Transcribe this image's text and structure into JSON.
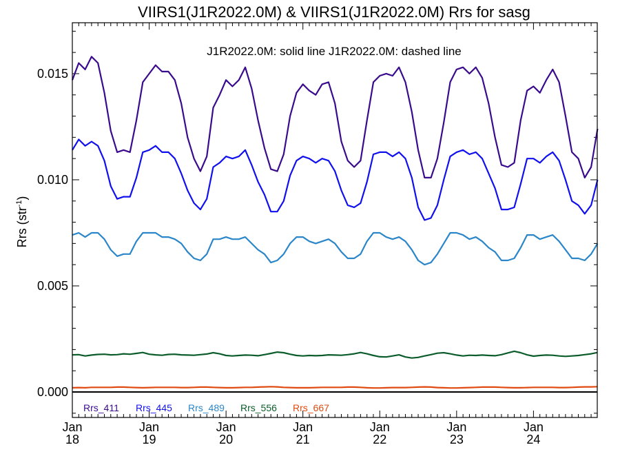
{
  "chart_data": {
    "type": "line",
    "title": "VIIRS1(J1R2022.0M) & VIIRS1(J1R2022.0M)  Rrs for sasg",
    "note": "J1R2022.0M: solid line   J1R2022.0M: dashed line",
    "ylabel_main": "Rrs (str",
    "ylabel_sup": "-1",
    "ylabel_close": ")",
    "ylim": [
      -0.0012,
      0.0174
    ],
    "xlim": [
      2018.0,
      2024.83
    ],
    "yticks": [
      {
        "value": 0.0,
        "label": "0.000"
      },
      {
        "value": 0.005,
        "label": "0.005"
      },
      {
        "value": 0.01,
        "label": "0.010"
      },
      {
        "value": 0.015,
        "label": "0.015"
      }
    ],
    "xticks": [
      {
        "value": 2018,
        "line1": "Jan",
        "line2": "18"
      },
      {
        "value": 2019,
        "line1": "Jan",
        "line2": "19"
      },
      {
        "value": 2020,
        "line1": "Jan",
        "line2": "20"
      },
      {
        "value": 2021,
        "line1": "Jan",
        "line2": "21"
      },
      {
        "value": 2022,
        "line1": "Jan",
        "line2": "22"
      },
      {
        "value": 2023,
        "line1": "Jan",
        "line2": "23"
      },
      {
        "value": 2024,
        "line1": "Jan",
        "line2": "24"
      }
    ],
    "zero_line": 0.0,
    "grid": false,
    "legend_position": "bottom-left",
    "x_start": 2018.0,
    "x_step": 0.0833333,
    "series": [
      {
        "name": "Rrs_411",
        "color": "#3a0a8c",
        "values": [
          0.0147,
          0.0155,
          0.0152,
          0.0158,
          0.0155,
          0.0141,
          0.0123,
          0.0113,
          0.0114,
          0.0113,
          0.0128,
          0.0146,
          0.015,
          0.0154,
          0.0151,
          0.0151,
          0.0147,
          0.0136,
          0.012,
          0.011,
          0.0104,
          0.0111,
          0.0134,
          0.014,
          0.0147,
          0.0144,
          0.0147,
          0.0153,
          0.0143,
          0.0128,
          0.0115,
          0.0105,
          0.0104,
          0.0112,
          0.013,
          0.0141,
          0.0145,
          0.0142,
          0.014,
          0.0145,
          0.0146,
          0.0136,
          0.0118,
          0.0109,
          0.0106,
          0.0109,
          0.0128,
          0.0146,
          0.0149,
          0.015,
          0.0149,
          0.0153,
          0.0146,
          0.0132,
          0.0114,
          0.0101,
          0.0101,
          0.011,
          0.0127,
          0.0146,
          0.0152,
          0.0153,
          0.015,
          0.0153,
          0.0148,
          0.0136,
          0.012,
          0.0107,
          0.0106,
          0.0108,
          0.0128,
          0.0142,
          0.0144,
          0.0141,
          0.0147,
          0.0152,
          0.0146,
          0.013,
          0.0113,
          0.011,
          0.0101,
          0.0106,
          0.0124
        ]
      },
      {
        "name": "Rrs_445",
        "color": "#1010ee",
        "values": [
          0.0114,
          0.0119,
          0.0116,
          0.0118,
          0.0116,
          0.0109,
          0.0097,
          0.0091,
          0.0092,
          0.0092,
          0.0101,
          0.0113,
          0.0114,
          0.0116,
          0.0113,
          0.0113,
          0.011,
          0.0103,
          0.0095,
          0.0089,
          0.0086,
          0.0091,
          0.0106,
          0.0108,
          0.0111,
          0.011,
          0.0111,
          0.0114,
          0.0107,
          0.0099,
          0.0093,
          0.0085,
          0.0085,
          0.009,
          0.0102,
          0.0109,
          0.0111,
          0.011,
          0.0108,
          0.011,
          0.0109,
          0.0104,
          0.0095,
          0.0088,
          0.0087,
          0.0089,
          0.0099,
          0.0112,
          0.0113,
          0.0113,
          0.0111,
          0.0113,
          0.011,
          0.0101,
          0.0087,
          0.0081,
          0.0082,
          0.0088,
          0.01,
          0.0111,
          0.0113,
          0.0114,
          0.0112,
          0.0113,
          0.011,
          0.0103,
          0.0096,
          0.0086,
          0.0086,
          0.0087,
          0.0098,
          0.011,
          0.011,
          0.0108,
          0.0111,
          0.0113,
          0.0109,
          0.01,
          0.009,
          0.0088,
          0.0084,
          0.0088,
          0.01
        ]
      },
      {
        "name": "Rrs_489",
        "color": "#2a86c8",
        "values": [
          0.0074,
          0.0075,
          0.0073,
          0.0075,
          0.0075,
          0.0072,
          0.0067,
          0.0064,
          0.0065,
          0.0065,
          0.0071,
          0.0075,
          0.0075,
          0.0075,
          0.0073,
          0.0073,
          0.0072,
          0.007,
          0.0066,
          0.0063,
          0.0062,
          0.0065,
          0.0072,
          0.0072,
          0.0073,
          0.0072,
          0.0072,
          0.0073,
          0.007,
          0.0067,
          0.0065,
          0.0061,
          0.0062,
          0.0065,
          0.007,
          0.0073,
          0.0073,
          0.0071,
          0.007,
          0.0071,
          0.0072,
          0.007,
          0.0066,
          0.0063,
          0.0063,
          0.0065,
          0.0071,
          0.0075,
          0.0075,
          0.0073,
          0.0072,
          0.0073,
          0.0071,
          0.0067,
          0.0062,
          0.006,
          0.0061,
          0.0065,
          0.007,
          0.0075,
          0.0075,
          0.0074,
          0.0072,
          0.0073,
          0.0071,
          0.0068,
          0.0066,
          0.0062,
          0.0062,
          0.0063,
          0.0068,
          0.0074,
          0.0074,
          0.0072,
          0.0073,
          0.0074,
          0.0071,
          0.0067,
          0.0063,
          0.0063,
          0.0062,
          0.0065,
          0.007
        ]
      },
      {
        "name": "Rrs_556",
        "color": "#0a5c2a",
        "values": [
          0.00175,
          0.00176,
          0.0017,
          0.00174,
          0.00177,
          0.00178,
          0.00175,
          0.00176,
          0.0018,
          0.00178,
          0.00182,
          0.00186,
          0.00178,
          0.00175,
          0.00173,
          0.00177,
          0.00178,
          0.00175,
          0.00174,
          0.00173,
          0.00176,
          0.00179,
          0.00185,
          0.0018,
          0.00172,
          0.0017,
          0.00172,
          0.00174,
          0.00173,
          0.00171,
          0.00176,
          0.00182,
          0.00188,
          0.00185,
          0.00178,
          0.00172,
          0.0017,
          0.00172,
          0.00171,
          0.00172,
          0.00175,
          0.00174,
          0.00173,
          0.00176,
          0.0018,
          0.00186,
          0.0018,
          0.00172,
          0.00166,
          0.00165,
          0.0017,
          0.00175,
          0.00165,
          0.0016,
          0.00163,
          0.0017,
          0.00176,
          0.00183,
          0.00185,
          0.0018,
          0.00174,
          0.0017,
          0.00173,
          0.00172,
          0.00174,
          0.00172,
          0.00171,
          0.00176,
          0.00184,
          0.00192,
          0.00185,
          0.00175,
          0.00169,
          0.00172,
          0.00174,
          0.00173,
          0.0017,
          0.00168,
          0.0017,
          0.00172,
          0.00176,
          0.0018,
          0.00186
        ]
      },
      {
        "name": "Rrs_667",
        "color": "#e04a10",
        "values": [
          0.0002,
          0.00021,
          0.0002,
          0.00022,
          0.00022,
          0.00022,
          0.00022,
          0.00023,
          0.00023,
          0.00022,
          0.00021,
          0.0002,
          0.00021,
          0.00022,
          0.00022,
          0.00022,
          0.00022,
          0.00021,
          0.00021,
          0.00022,
          0.00023,
          0.00023,
          0.00022,
          0.00021,
          0.0002,
          0.0002,
          0.00021,
          0.00022,
          0.00022,
          0.00023,
          0.00024,
          0.00025,
          0.00024,
          0.00022,
          0.00021,
          0.0002,
          0.0002,
          0.0002,
          0.00021,
          0.00022,
          0.00022,
          0.00022,
          0.00022,
          0.00023,
          0.00023,
          0.00022,
          0.0002,
          0.00019,
          0.00019,
          0.0002,
          0.00021,
          0.00021,
          0.00021,
          0.00022,
          0.00023,
          0.00024,
          0.00023,
          0.00021,
          0.0002,
          0.00019,
          0.00019,
          0.0002,
          0.00021,
          0.00022,
          0.00023,
          0.00023,
          0.00023,
          0.00022,
          0.00021,
          0.0002,
          0.0002,
          0.00021,
          0.00022,
          0.00022,
          0.00022,
          0.00022,
          0.00021,
          0.00021,
          0.00022,
          0.00023,
          0.00024,
          0.00024,
          0.00025
        ]
      }
    ]
  }
}
